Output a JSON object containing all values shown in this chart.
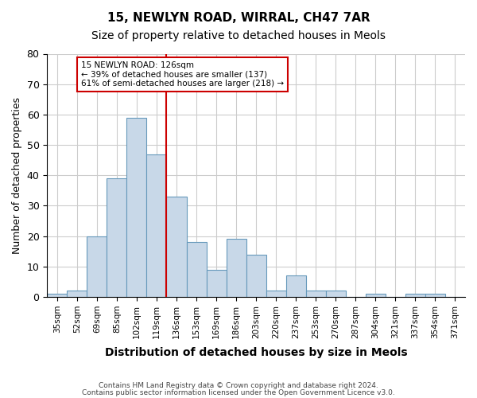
{
  "title_line1": "15, NEWLYN ROAD, WIRRAL, CH47 7AR",
  "title_line2": "Size of property relative to detached houses in Meols",
  "xlabel": "Distribution of detached houses by size in Meols",
  "ylabel": "Number of detached properties",
  "footer_line1": "Contains HM Land Registry data © Crown copyright and database right 2024.",
  "footer_line2": "Contains public sector information licensed under the Open Government Licence v3.0.",
  "annotation_line1": "15 NEWLYN ROAD: 126sqm",
  "annotation_line2": "← 39% of detached houses are smaller (137)",
  "annotation_line3": "61% of semi-detached houses are larger (218) →",
  "bar_labels": [
    "35sqm",
    "52sqm",
    "69sqm",
    "85sqm",
    "102sqm",
    "119sqm",
    "136sqm",
    "153sqm",
    "169sqm",
    "186sqm",
    "203sqm",
    "220sqm",
    "237sqm",
    "253sqm",
    "270sqm",
    "287sqm",
    "304sqm",
    "321sqm",
    "337sqm",
    "354sqm",
    "371sqm"
  ],
  "bar_heights": [
    1,
    2,
    20,
    39,
    59,
    47,
    33,
    18,
    9,
    19,
    14,
    2,
    7,
    2,
    2,
    0,
    1,
    0,
    1,
    1,
    0
  ],
  "bar_color": "#c8d8e8",
  "bar_edge_color": "#6699bb",
  "vline_x": 5.5,
  "vline_color": "#cc0000",
  "annotation_box_color": "#cc0000",
  "ylim": [
    0,
    80
  ],
  "yticks": [
    0,
    10,
    20,
    30,
    40,
    50,
    60,
    70,
    80
  ],
  "background_color": "#ffffff",
  "grid_color": "#cccccc"
}
